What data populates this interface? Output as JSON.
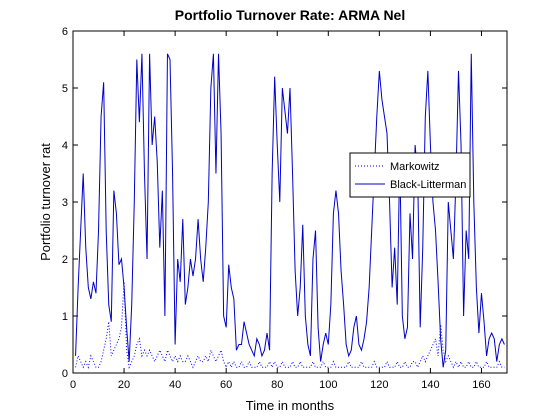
{
  "chart_data": {
    "type": "line",
    "title": "Portfolio Turnover Rate: ARMA Nel",
    "xlabel": "Time in months",
    "ylabel": "Portfolio turnover rat",
    "xlim": [
      0,
      170
    ],
    "xticks": [
      0,
      20,
      40,
      60,
      80,
      100,
      120,
      140,
      160
    ],
    "ylim": [
      0,
      6
    ],
    "yticks": [
      0,
      1,
      2,
      3,
      4,
      5,
      6
    ],
    "grid": false,
    "legend": "east",
    "x": [
      1,
      2,
      3,
      4,
      5,
      6,
      7,
      8,
      9,
      10,
      11,
      12,
      13,
      14,
      15,
      16,
      17,
      18,
      19,
      20,
      21,
      22,
      23,
      24,
      25,
      26,
      27,
      28,
      29,
      30,
      31,
      32,
      33,
      34,
      35,
      36,
      37,
      38,
      39,
      40,
      41,
      42,
      43,
      44,
      45,
      46,
      47,
      48,
      49,
      50,
      51,
      52,
      53,
      54,
      55,
      56,
      57,
      58,
      59,
      60,
      61,
      62,
      63,
      64,
      65,
      66,
      67,
      68,
      69,
      70,
      71,
      72,
      73,
      74,
      75,
      76,
      77,
      78,
      79,
      80,
      81,
      82,
      83,
      84,
      85,
      86,
      87,
      88,
      89,
      90,
      91,
      92,
      93,
      94,
      95,
      96,
      97,
      98,
      99,
      100,
      101,
      102,
      103,
      104,
      105,
      106,
      107,
      108,
      109,
      110,
      111,
      112,
      113,
      114,
      115,
      116,
      117,
      118,
      119,
      120,
      121,
      122,
      123,
      124,
      125,
      126,
      127,
      128,
      129,
      130,
      131,
      132,
      133,
      134,
      135,
      136,
      137,
      138,
      139,
      140,
      141,
      142,
      143,
      144,
      145,
      146,
      147,
      148,
      149,
      150,
      151,
      152,
      153,
      154,
      155,
      156,
      157,
      158,
      159,
      160,
      161,
      162,
      163,
      164,
      165,
      166,
      167,
      168,
      169
    ],
    "series": [
      {
        "name": "Markowitz",
        "color": "#0000ff",
        "line_style": "dotted",
        "values": [
          0.1,
          0.3,
          0.2,
          0.1,
          0.2,
          0.1,
          0.3,
          0.2,
          0.1,
          0.1,
          0.2,
          0.4,
          0.6,
          0.9,
          0.3,
          0.4,
          0.5,
          0.6,
          0.8,
          1.6,
          0.4,
          0.1,
          0.2,
          0.3,
          0.5,
          0.6,
          0.3,
          0.4,
          0.3,
          0.4,
          0.3,
          0.2,
          0.3,
          0.4,
          0.3,
          0.2,
          0.4,
          0.3,
          0.2,
          0.3,
          0.2,
          0.3,
          0.2,
          0.2,
          0.3,
          0.2,
          0.1,
          0.2,
          0.3,
          0.2,
          0.2,
          0.3,
          0.2,
          0.4,
          0.3,
          0.2,
          0.3,
          0.4,
          0.2,
          0.1,
          0.2,
          0.1,
          0.2,
          0.1,
          0.1,
          0.2,
          0.1,
          0.1,
          0.2,
          0.1,
          0.1,
          0.1,
          0.2,
          0.1,
          0.1,
          0.1,
          0.2,
          0.1,
          0.2,
          0.1,
          0.1,
          0.2,
          0.1,
          0.1,
          0.1,
          0.2,
          0.1,
          0.1,
          0.2,
          0.1,
          0.1,
          0.1,
          0.1,
          0.2,
          0.1,
          0.1,
          0.1,
          0.2,
          0.1,
          0.1,
          0.1,
          0.2,
          0.1,
          0.1,
          0.1,
          0.1,
          0.1,
          0.2,
          0.1,
          0.1,
          0.1,
          0.1,
          0.2,
          0.1,
          0.1,
          0.1,
          0.1,
          0.2,
          0.1,
          0.1,
          0.1,
          0.1,
          0.2,
          0.1,
          0.1,
          0.1,
          0.2,
          0.1,
          0.1,
          0.2,
          0.1,
          0.1,
          0.2,
          0.2,
          0.1,
          0.2,
          0.3,
          0.2,
          0.3,
          0.4,
          0.5,
          0.6,
          0.3,
          0.85,
          0.4,
          0.2,
          0.3,
          0.2,
          0.1,
          0.2,
          0.1,
          0.2,
          0.1,
          0.1,
          0.2,
          0.1,
          0.1,
          0.2,
          0.1,
          0.1,
          0.1,
          0.2,
          0.1,
          0.1,
          0.1,
          0.1,
          0.2,
          0.1,
          0.1
        ]
      },
      {
        "name": "Black-Litterman",
        "color": "#0000cc",
        "line_style": "solid",
        "values": [
          0.3,
          1.5,
          2.5,
          3.5,
          2.2,
          1.5,
          1.3,
          1.6,
          1.4,
          2.5,
          4.5,
          5.1,
          2.5,
          1.2,
          0.9,
          3.2,
          2.8,
          1.9,
          2.0,
          1.5,
          0.8,
          0.2,
          1.2,
          3.0,
          5.5,
          4.4,
          5.6,
          3.5,
          2.0,
          5.6,
          4.0,
          4.5,
          3.7,
          2.2,
          3.2,
          1.0,
          5.6,
          5.5,
          3.5,
          0.5,
          2.0,
          1.6,
          2.7,
          1.2,
          1.5,
          2.0,
          1.7,
          2.0,
          2.7,
          2.0,
          1.6,
          2.2,
          3.0,
          5.0,
          5.6,
          3.5,
          5.6,
          4.2,
          1.0,
          0.8,
          1.9,
          1.5,
          1.3,
          0.4,
          0.5,
          0.5,
          0.9,
          0.7,
          0.5,
          0.4,
          0.3,
          0.6,
          0.5,
          0.3,
          0.4,
          0.7,
          0.4,
          3.5,
          5.2,
          4.0,
          3.0,
          5.0,
          4.6,
          4.2,
          5.0,
          3.5,
          1.8,
          1.0,
          1.5,
          2.6,
          1.0,
          0.5,
          0.3,
          2.0,
          2.5,
          0.8,
          0.2,
          0.5,
          0.7,
          0.5,
          1.2,
          2.8,
          3.2,
          2.8,
          1.8,
          1.2,
          0.5,
          0.3,
          0.4,
          0.8,
          1.0,
          0.5,
          0.4,
          0.6,
          0.9,
          1.5,
          2.5,
          3.5,
          4.5,
          5.3,
          4.8,
          4.5,
          4.2,
          3.0,
          1.5,
          2.2,
          1.2,
          3.8,
          1.0,
          0.6,
          0.8,
          2.8,
          2.0,
          4.0,
          3.5,
          0.8,
          2.2,
          4.5,
          5.3,
          4.0,
          3.0,
          2.5,
          1.6,
          0.6,
          0.1,
          0.4,
          3.0,
          2.5,
          2.0,
          3.4,
          5.3,
          4.0,
          1.0,
          2.5,
          2.0,
          5.6,
          3.0,
          1.5,
          0.7,
          1.4,
          0.9,
          0.3,
          0.6,
          0.7,
          0.6,
          0.2,
          0.5,
          0.6,
          0.5
        ]
      }
    ]
  }
}
